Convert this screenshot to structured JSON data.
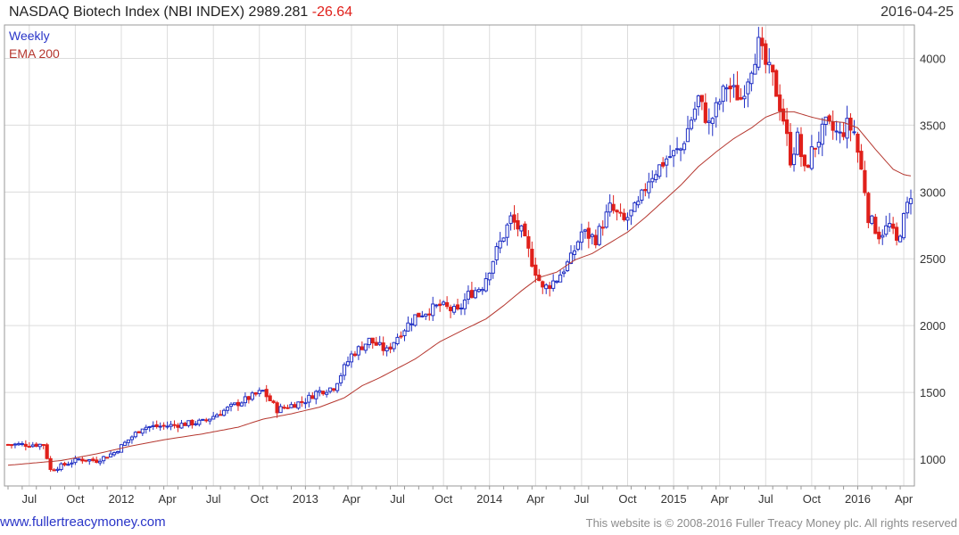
{
  "header": {
    "title": "NASDAQ Biotech Index (NBI INDEX)",
    "last": "2989.281",
    "change": "-26.64",
    "date": "2016-04-25"
  },
  "legend": {
    "weekly": "Weekly",
    "ema": "EMA 200"
  },
  "footer": {
    "left": "www.fullertreacymoney.com",
    "right": "This website is © 2008-2016 Fuller Treacy Money plc. All rights reserved"
  },
  "colors": {
    "up": "#1f2fc4",
    "down": "#e0201b",
    "ema": "#b5372f",
    "grid": "#dcdcdc"
  },
  "chart_data": {
    "type": "candlestick",
    "title": "NASDAQ Biotech Index (NBI INDEX)",
    "ylim": [
      800,
      4250
    ],
    "yticks": [
      1000,
      1500,
      2000,
      2500,
      3000,
      3500,
      4000
    ],
    "xtick_labels": [
      "Jul",
      "Oct",
      "2012",
      "Apr",
      "Jul",
      "Oct",
      "2013",
      "Apr",
      "Jul",
      "Oct",
      "2014",
      "Apr",
      "Jul",
      "Oct",
      "2015",
      "Apr",
      "Jul",
      "Oct",
      "2016",
      "Apr"
    ],
    "xtick_weeks": [
      6,
      19,
      32,
      45,
      58,
      71,
      84,
      97,
      110,
      123,
      136,
      149,
      162,
      175,
      188,
      201,
      214,
      227,
      240,
      253
    ],
    "n_weeks": 256,
    "close_anchors": [
      [
        0,
        1110
      ],
      [
        10,
        1110
      ],
      [
        12,
        920
      ],
      [
        15,
        950
      ],
      [
        20,
        1000
      ],
      [
        25,
        990
      ],
      [
        30,
        1050
      ],
      [
        38,
        1240
      ],
      [
        45,
        1250
      ],
      [
        55,
        1280
      ],
      [
        65,
        1420
      ],
      [
        72,
        1510
      ],
      [
        76,
        1370
      ],
      [
        84,
        1440
      ],
      [
        87,
        1500
      ],
      [
        92,
        1540
      ],
      [
        97,
        1780
      ],
      [
        102,
        1890
      ],
      [
        107,
        1810
      ],
      [
        110,
        1920
      ],
      [
        115,
        2070
      ],
      [
        122,
        2150
      ],
      [
        127,
        2100
      ],
      [
        130,
        2230
      ],
      [
        134,
        2300
      ],
      [
        138,
        2560
      ],
      [
        142,
        2800
      ],
      [
        145,
        2700
      ],
      [
        148,
        2480
      ],
      [
        151,
        2270
      ],
      [
        155,
        2350
      ],
      [
        159,
        2500
      ],
      [
        162,
        2700
      ],
      [
        166,
        2650
      ],
      [
        170,
        2880
      ],
      [
        174,
        2780
      ],
      [
        178,
        2900
      ],
      [
        181,
        3100
      ],
      [
        186,
        3250
      ],
      [
        190,
        3320
      ],
      [
        195,
        3700
      ],
      [
        198,
        3500
      ],
      [
        203,
        3800
      ],
      [
        207,
        3700
      ],
      [
        210,
        3950
      ],
      [
        212,
        4100
      ],
      [
        214,
        3950
      ],
      [
        216,
        3850
      ],
      [
        219,
        3550
      ],
      [
        221,
        3250
      ],
      [
        223,
        3400
      ],
      [
        225,
        3150
      ],
      [
        227,
        3300
      ],
      [
        231,
        3500
      ],
      [
        235,
        3420
      ],
      [
        237,
        3500
      ],
      [
        239,
        3450
      ],
      [
        240,
        3300
      ],
      [
        242,
        3020
      ],
      [
        243,
        2820
      ],
      [
        246,
        2680
      ],
      [
        249,
        2750
      ],
      [
        251,
        2620
      ],
      [
        253,
        2800
      ],
      [
        255,
        2990
      ]
    ],
    "ema200_anchors": [
      [
        0,
        955
      ],
      [
        15,
        990
      ],
      [
        25,
        1040
      ],
      [
        35,
        1100
      ],
      [
        45,
        1150
      ],
      [
        55,
        1190
      ],
      [
        65,
        1240
      ],
      [
        72,
        1300
      ],
      [
        80,
        1340
      ],
      [
        88,
        1390
      ],
      [
        95,
        1460
      ],
      [
        100,
        1550
      ],
      [
        105,
        1610
      ],
      [
        110,
        1680
      ],
      [
        115,
        1750
      ],
      [
        122,
        1880
      ],
      [
        128,
        1960
      ],
      [
        135,
        2050
      ],
      [
        140,
        2150
      ],
      [
        145,
        2260
      ],
      [
        150,
        2360
      ],
      [
        155,
        2400
      ],
      [
        160,
        2490
      ],
      [
        165,
        2540
      ],
      [
        170,
        2620
      ],
      [
        175,
        2700
      ],
      [
        180,
        2810
      ],
      [
        185,
        2930
      ],
      [
        190,
        3050
      ],
      [
        195,
        3190
      ],
      [
        200,
        3300
      ],
      [
        205,
        3400
      ],
      [
        210,
        3480
      ],
      [
        214,
        3560
      ],
      [
        218,
        3600
      ],
      [
        222,
        3600
      ],
      [
        227,
        3560
      ],
      [
        232,
        3530
      ],
      [
        236,
        3520
      ],
      [
        240,
        3480
      ],
      [
        245,
        3320
      ],
      [
        250,
        3170
      ],
      [
        253,
        3130
      ],
      [
        255,
        3120
      ]
    ],
    "last_close": 2989.281,
    "change": -26.64
  }
}
